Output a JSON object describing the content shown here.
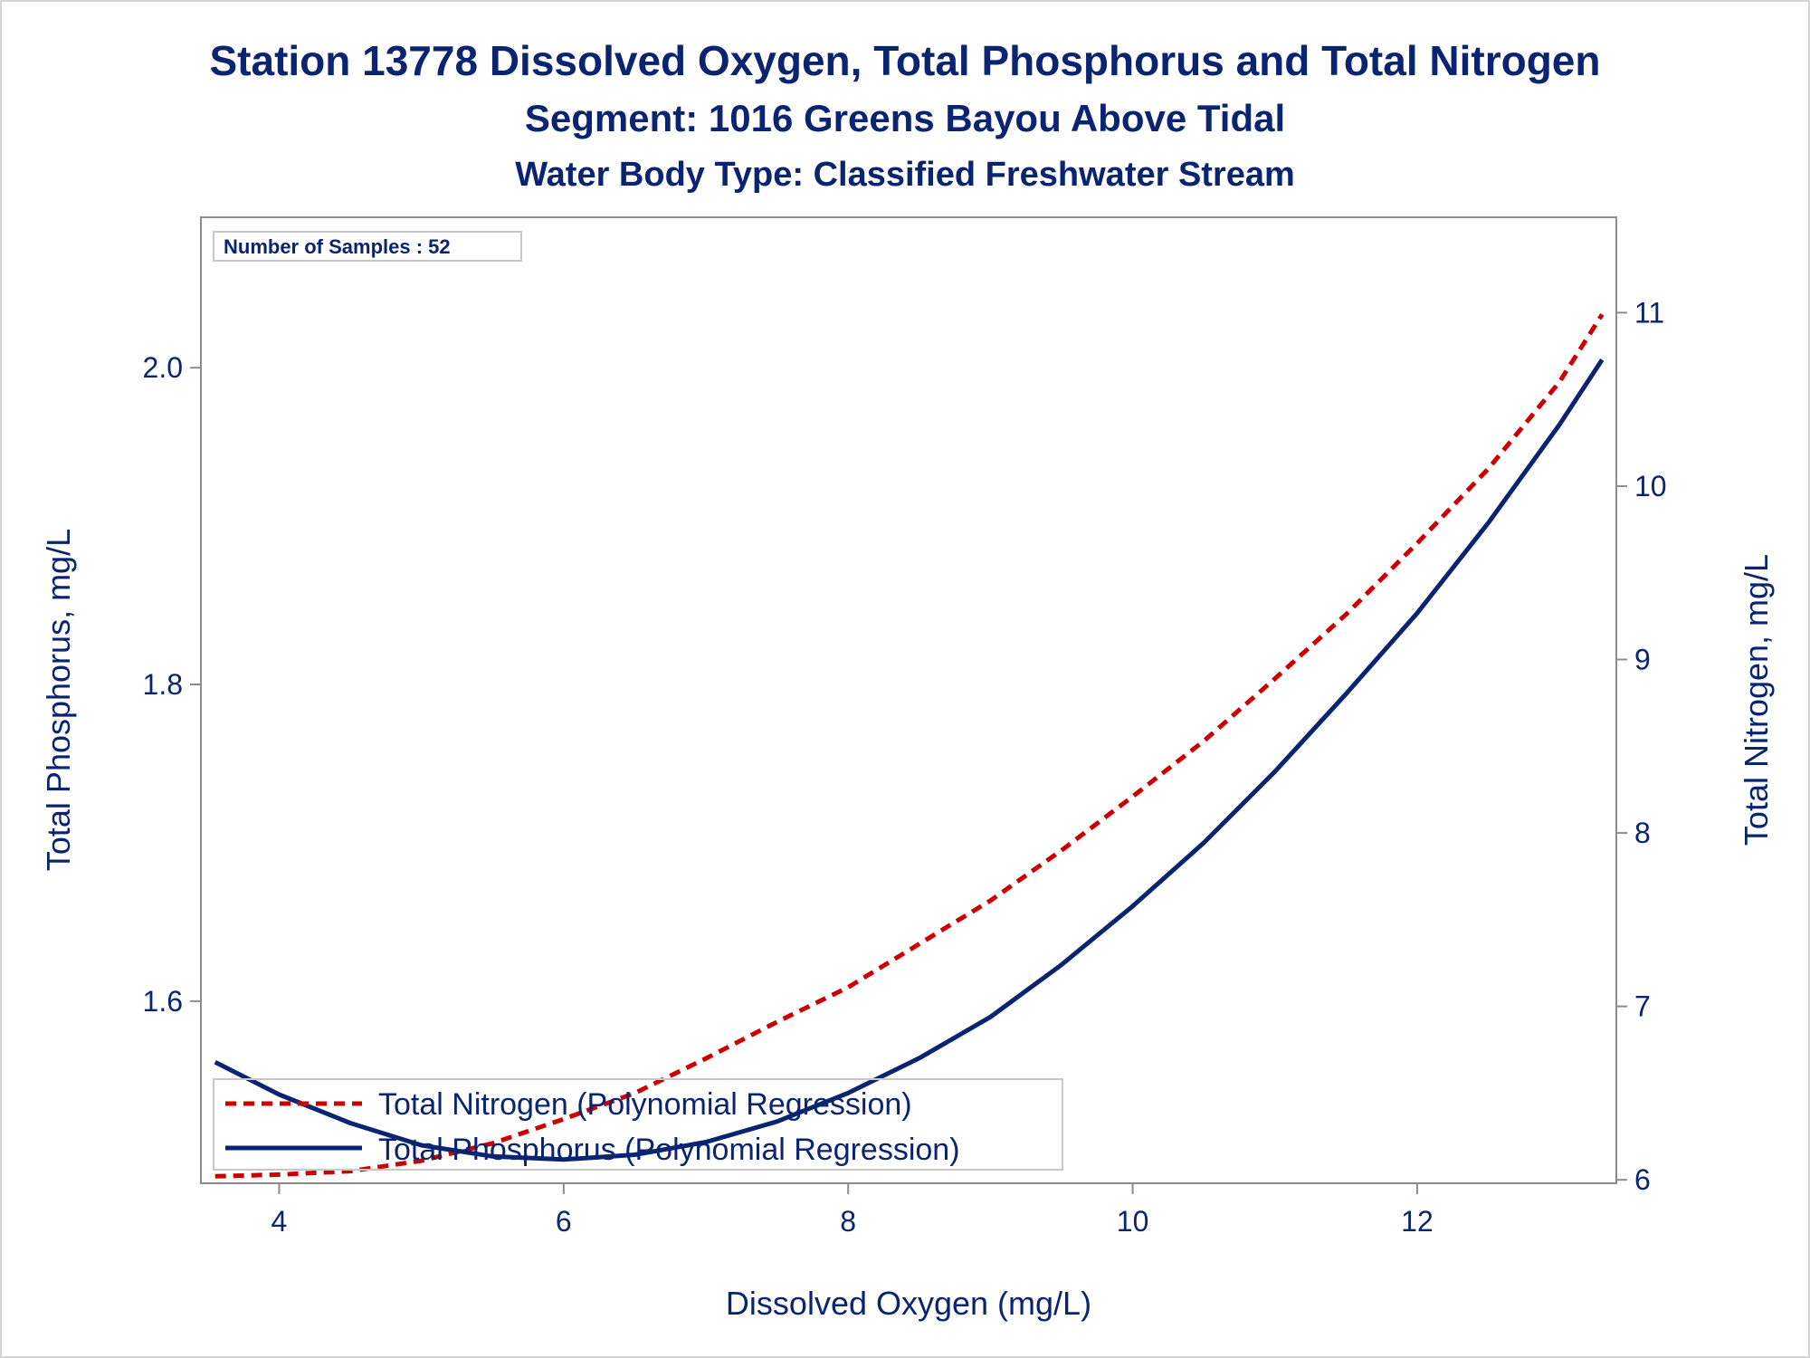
{
  "chart_data": {
    "type": "line",
    "title": "Station 13778  Dissolved Oxygen, Total Phosphorus and Total Nitrogen",
    "subtitle": "Segment: 1016  Greens Bayou Above Tidal",
    "subtitle2": "Water Body Type: Classified Freshwater Stream",
    "xlabel": "Dissolved Oxygen (mg/L)",
    "ylabel_left": "Total Phosphorus, mg/L",
    "ylabel_right": "Total Nitrogen, mg/L",
    "xlim": [
      3.45,
      13.4
    ],
    "ylim_left": [
      1.485,
      2.095
    ],
    "ylim_right": [
      5.98,
      11.55
    ],
    "x_ticks": [
      "4",
      "6",
      "8",
      "10",
      "12"
    ],
    "y_left_ticks": [
      "1.6",
      "1.8",
      "2.0"
    ],
    "y_right_ticks": [
      "6",
      "7",
      "8",
      "9",
      "10",
      "11"
    ],
    "inset": "Number of Samples : 52",
    "legend_position": "bottom-left",
    "grid": false,
    "series": [
      {
        "name": "Total Nitrogen (Polynomial Regression)",
        "axis": "right",
        "style": "dashed",
        "color": "#cc0000",
        "x": [
          3.55,
          4.0,
          4.5,
          5.0,
          5.5,
          6.0,
          6.5,
          7.0,
          7.5,
          8.0,
          8.5,
          9.0,
          9.5,
          10.0,
          10.5,
          11.0,
          11.5,
          12.0,
          12.5,
          13.0,
          13.3
        ],
        "y": [
          6.02,
          6.03,
          6.05,
          6.11,
          6.21,
          6.35,
          6.5,
          6.7,
          6.91,
          7.11,
          7.36,
          7.61,
          7.9,
          8.21,
          8.53,
          8.89,
          9.26,
          9.67,
          10.1,
          10.6,
          10.99
        ]
      },
      {
        "name": "Total Phosphorus (Polynomial Regression)",
        "axis": "left",
        "style": "solid",
        "color": "#0a2472",
        "x": [
          3.55,
          4.0,
          4.5,
          5.0,
          5.5,
          6.0,
          6.5,
          7.0,
          7.5,
          8.0,
          8.5,
          9.0,
          9.5,
          10.0,
          10.5,
          11.0,
          11.5,
          12.0,
          12.5,
          13.0,
          13.3
        ],
        "y": [
          1.5615,
          1.541,
          1.523,
          1.509,
          1.502,
          1.5,
          1.503,
          1.511,
          1.524,
          1.542,
          1.564,
          1.59,
          1.623,
          1.66,
          1.7,
          1.745,
          1.794,
          1.845,
          1.902,
          1.964,
          2.005
        ]
      }
    ]
  }
}
